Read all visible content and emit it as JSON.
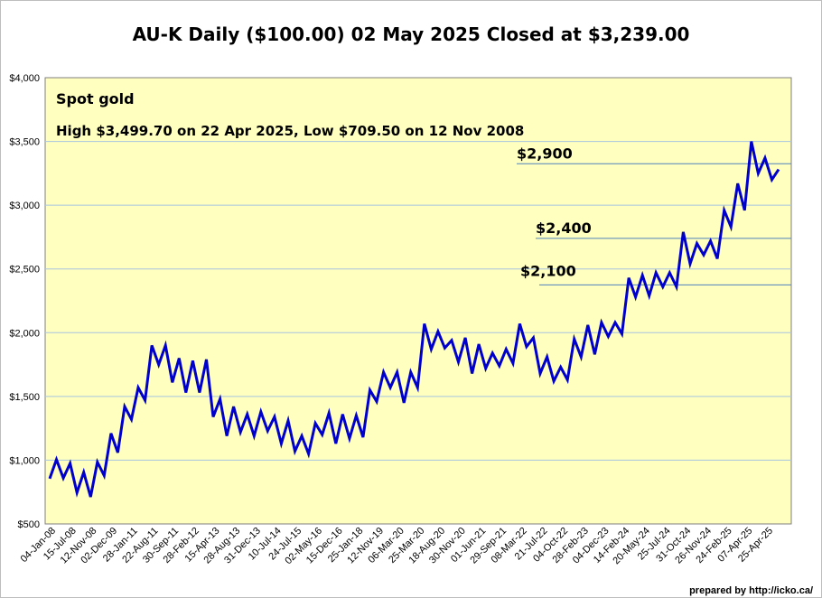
{
  "chart_data": {
    "type": "line",
    "title": "AU-K Daily ($100.00)  02 May 2025 Closed at $3,239.00",
    "series_name": "Spot gold",
    "subtitle": "High $3,499.70 on 22 Apr 2025, Low $709.50 on 12 Nov 2008",
    "ylim": [
      500,
      4000
    ],
    "yticks": [
      500,
      1000,
      1500,
      2000,
      2500,
      3000,
      3500,
      4000
    ],
    "ytick_labels": [
      "$500",
      "$1,000",
      "$1,500",
      "$2,000",
      "$2,500",
      "$3,000",
      "$3,500",
      "$4,000"
    ],
    "x_tick_labels": [
      "04-Jan-08",
      "15-Jul-08",
      "12-Nov-08",
      "02-Dec-09",
      "28-Jan-11",
      "22-Aug-11",
      "30-Sep-11",
      "28-Feb-12",
      "15-Apr-13",
      "28-Aug-13",
      "31-Dec-13",
      "10-Jul-14",
      "24-Jul-15",
      "02-May-16",
      "15-Dec-16",
      "25-Jan-18",
      "12-Nov-19",
      "06-Mar-20",
      "25-Mar-20",
      "18-Aug-20",
      "30-Nov-20",
      "01-Jun-21",
      "29-Sep-21",
      "08-Mar-22",
      "21-Jul-22",
      "04-Oct-22",
      "28-Feb-23",
      "04-Dec-23",
      "14-Feb-24",
      "20-May-24",
      "25-Jul-24",
      "31-Oct-24",
      "26-Nov-24",
      "24-Feb-25",
      "07-Apr-25",
      "25-Apr-25"
    ],
    "values": [
      855,
      1005,
      860,
      975,
      745,
      905,
      712,
      985,
      880,
      1210,
      1060,
      1420,
      1320,
      1570,
      1470,
      1900,
      1750,
      1900,
      1610,
      1800,
      1530,
      1780,
      1530,
      1790,
      1340,
      1480,
      1190,
      1420,
      1220,
      1360,
      1190,
      1380,
      1230,
      1340,
      1130,
      1310,
      1070,
      1190,
      1050,
      1290,
      1200,
      1370,
      1130,
      1360,
      1170,
      1350,
      1180,
      1550,
      1460,
      1690,
      1570,
      1690,
      1450,
      1690,
      1570,
      2070,
      1870,
      2010,
      1880,
      1940,
      1770,
      1960,
      1680,
      1910,
      1720,
      1840,
      1740,
      1870,
      1760,
      2070,
      1890,
      1960,
      1680,
      1810,
      1620,
      1730,
      1630,
      1950,
      1810,
      2060,
      1830,
      2080,
      1970,
      2080,
      1990,
      2430,
      2280,
      2450,
      2290,
      2470,
      2360,
      2470,
      2360,
      2790,
      2540,
      2700,
      2610,
      2720,
      2580,
      2960,
      2830,
      3170,
      2960,
      3500,
      3250,
      3370,
      3200,
      3280
    ],
    "reference_lines": [
      {
        "label": "$2,900",
        "value": 3325
      },
      {
        "label": "$2,400",
        "value": 2740
      },
      {
        "label": "$2,100",
        "value": 2375
      }
    ],
    "line_color": "#0000cc",
    "plot_bg": "#ffffc0",
    "grid_color": "#a8c4e0",
    "ref_line_color": "#4f81bd",
    "grid": true
  },
  "credit": "prepared by http://icko.ca/"
}
